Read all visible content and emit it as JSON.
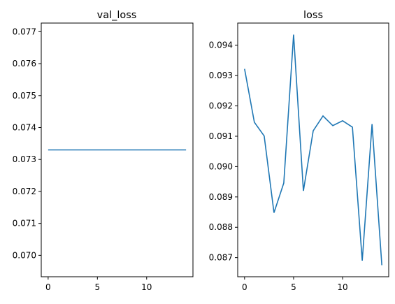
{
  "chart_data": [
    {
      "type": "line",
      "title": "val_loss",
      "xlabel": "",
      "ylabel": "",
      "color": "#1f77b4",
      "x": [
        0,
        1,
        2,
        3,
        4,
        5,
        6,
        7,
        8,
        9,
        10,
        11,
        12,
        13,
        14
      ],
      "y": [
        0.0733,
        0.0733,
        0.0733,
        0.0733,
        0.0733,
        0.0733,
        0.0733,
        0.0733,
        0.0733,
        0.0733,
        0.0733,
        0.0733,
        0.0733,
        0.0733,
        0.0733
      ],
      "xlim": [
        -0.7,
        14.7
      ],
      "ylim": [
        0.06933,
        0.07727
      ],
      "xticks": [
        0,
        5,
        10
      ],
      "xtick_labels": [
        "0",
        "5",
        "10"
      ],
      "yticks": [
        0.07,
        0.071,
        0.072,
        0.073,
        0.074,
        0.075,
        0.076,
        0.077
      ],
      "ytick_labels": [
        "0.070",
        "0.071",
        "0.072",
        "0.073",
        "0.074",
        "0.075",
        "0.076",
        "0.077"
      ],
      "grid": false
    },
    {
      "type": "line",
      "title": "loss",
      "xlabel": "",
      "ylabel": "",
      "color": "#1f77b4",
      "x": [
        0,
        1,
        2,
        3,
        4,
        5,
        6,
        7,
        8,
        9,
        10,
        11,
        12,
        13,
        14
      ],
      "y": [
        0.09322,
        0.09146,
        0.09101,
        0.08848,
        0.08946,
        0.09435,
        0.0892,
        0.09118,
        0.09167,
        0.09135,
        0.09151,
        0.0913,
        0.0869,
        0.0914,
        0.08675
      ],
      "xlim": [
        -0.7,
        14.7
      ],
      "ylim": [
        0.08637,
        0.09473
      ],
      "xticks": [
        0,
        5,
        10
      ],
      "xtick_labels": [
        "0",
        "5",
        "10"
      ],
      "yticks": [
        0.087,
        0.088,
        0.089,
        0.09,
        0.091,
        0.092,
        0.093,
        0.094
      ],
      "ytick_labels": [
        "0.087",
        "0.088",
        "0.089",
        "0.090",
        "0.091",
        "0.092",
        "0.093",
        "0.094"
      ],
      "grid": false
    }
  ]
}
